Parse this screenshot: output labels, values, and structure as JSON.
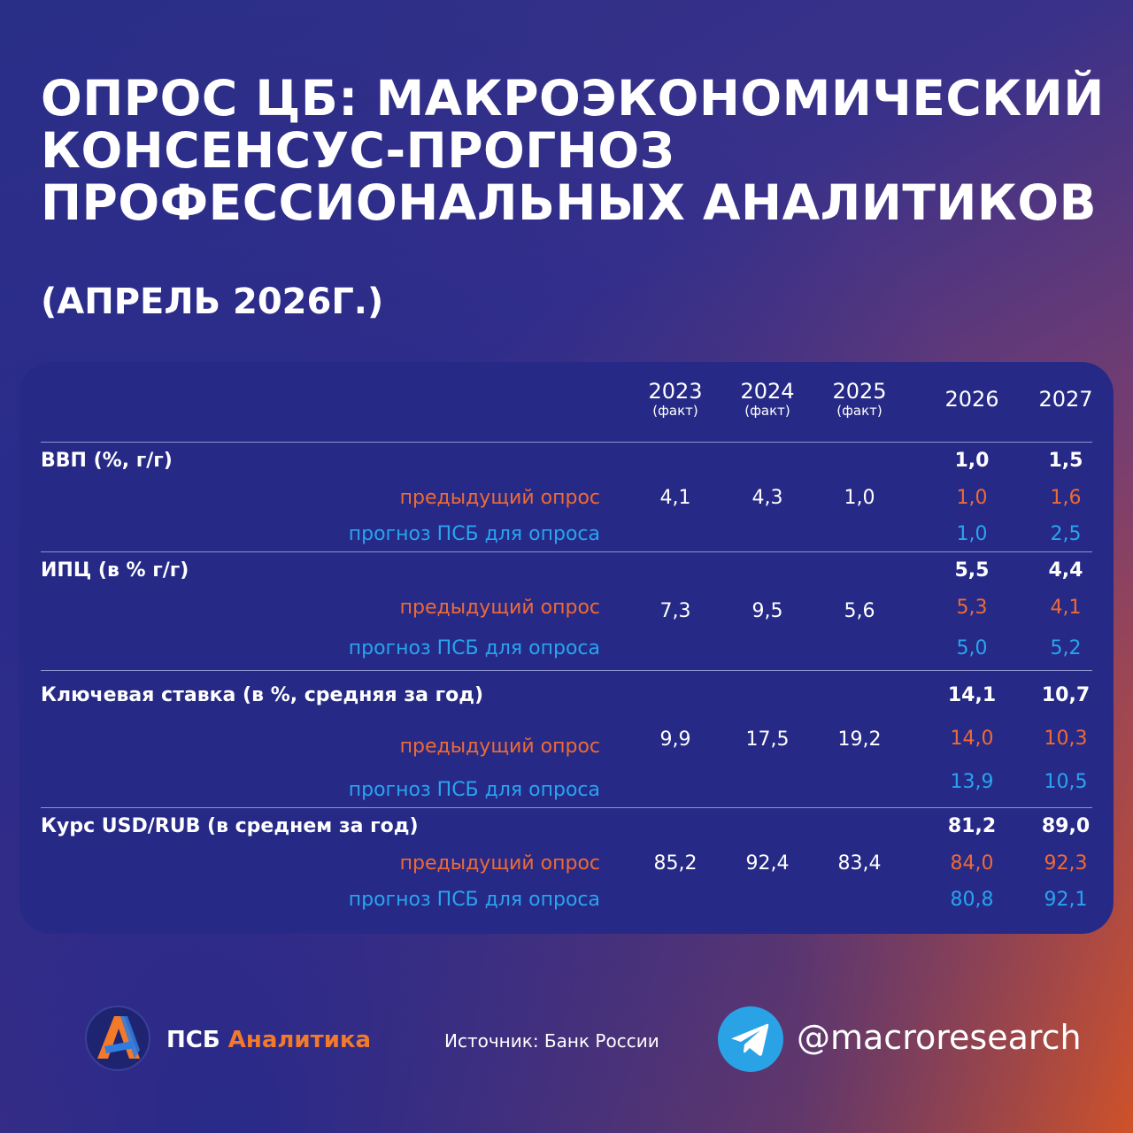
{
  "title_lines": [
    "ОПРОС ЦБ: МАКРОЭКОНОМИЧЕСКИЙ",
    "КОНСЕНСУС-ПРОГНОЗ",
    "ПРОФЕССИОНАЛЬНЫХ АНАЛИТИКОВ"
  ],
  "subtitle": "(АПРЕЛЬ 2026Г.)",
  "colors": {
    "previous": "#ee6a35",
    "psb": "#28a4f0",
    "panel": "#262a86"
  },
  "table": {
    "headers": [
      {
        "year": "2023",
        "note": "(факт)"
      },
      {
        "year": "2024",
        "note": "(факт)"
      },
      {
        "year": "2025",
        "note": "(факт)"
      },
      {
        "year": "2026",
        "note": ""
      },
      {
        "year": "2027",
        "note": ""
      }
    ],
    "prev_label": "предыдущий опрос",
    "psb_label": "прогноз ПСБ для опроса",
    "sections": [
      {
        "label": "ВВП (%, г/г)",
        "main": [
          "1,0",
          "1,5"
        ],
        "facts": [
          "4,1",
          "4,3",
          "1,0"
        ],
        "prev": [
          "1,0",
          "1,6"
        ],
        "psb": [
          "1,0",
          "2,5"
        ]
      },
      {
        "label": "ИПЦ (в % г/г)",
        "main": [
          "5,5",
          "4,4"
        ],
        "facts": [
          "7,3",
          "9,5",
          "5,6"
        ],
        "prev": [
          "5,3",
          "4,1"
        ],
        "psb": [
          "5,0",
          "5,2"
        ]
      },
      {
        "label": "Ключевая ставка (в %, средняя за год)",
        "main": [
          "14,1",
          "10,7"
        ],
        "facts": [
          "9,9",
          "17,5",
          "19,2"
        ],
        "prev": [
          "14,0",
          "10,3"
        ],
        "psb": [
          "13,9",
          "10,5"
        ]
      },
      {
        "label": "Курс USD/RUB (в среднем за год)",
        "main": [
          "81,2",
          "89,0"
        ],
        "facts": [
          "85,2",
          "92,4",
          "83,4"
        ],
        "prev": [
          "84,0",
          "92,3"
        ],
        "psb": [
          "80,8",
          "92,1"
        ]
      }
    ]
  },
  "footer": {
    "brand_part1": "ПСБ",
    "brand_part2": "Аналитика",
    "source": "Источник: Банк России",
    "telegram_handle": "@macroresearch",
    "logo_icon": "psb-analytics-logo",
    "telegram_icon": "telegram-icon"
  }
}
